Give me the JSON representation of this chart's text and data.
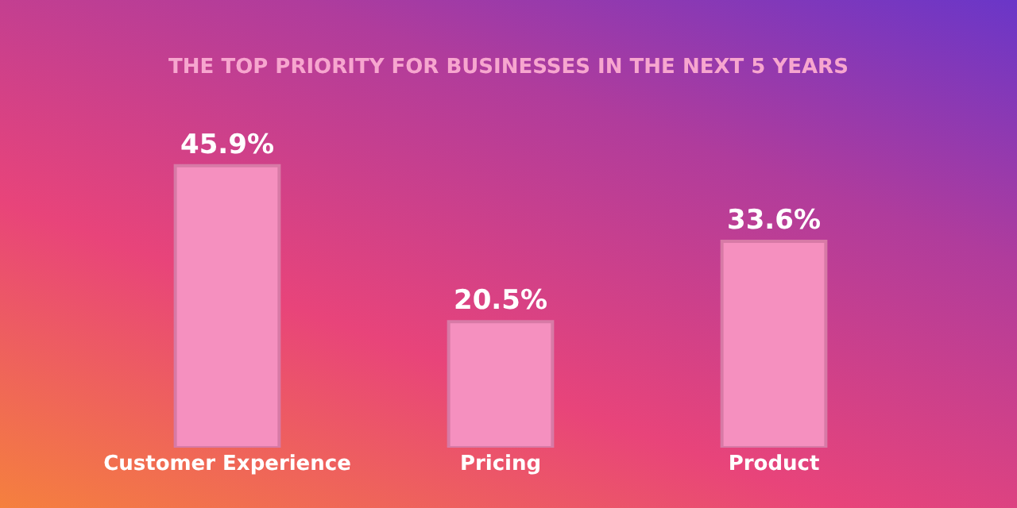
{
  "chart_data": {
    "type": "bar",
    "title": "THE TOP PRIORITY FOR BUSINESSES IN THE NEXT 5 YEARS",
    "categories": [
      "Customer Experience",
      "Pricing",
      "Product"
    ],
    "values": [
      45.9,
      20.5,
      33.6
    ],
    "value_labels": [
      "45.9%",
      "20.5%",
      "33.6%"
    ],
    "color": "#f590bf"
  }
}
